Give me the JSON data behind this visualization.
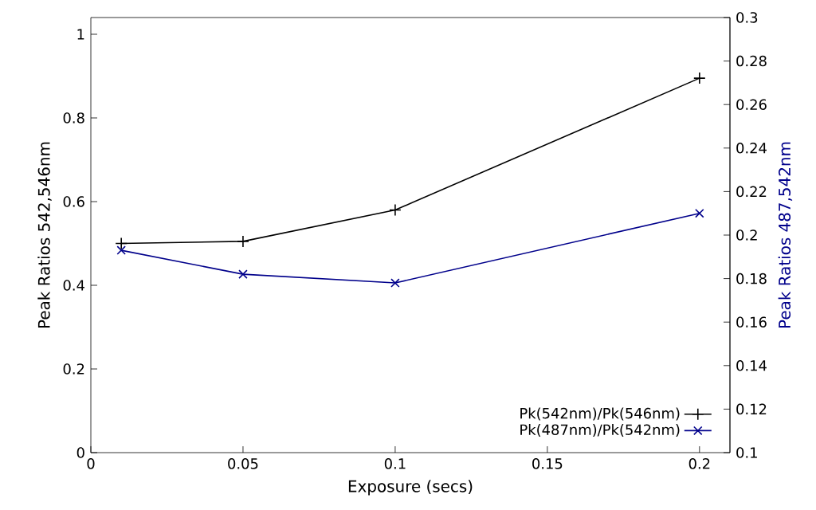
{
  "chart_data": {
    "type": "line",
    "xlabel": "Exposure (secs)",
    "ylabel": "Peak Ratios 542,546nm",
    "y2label": "Peak Ratios 487,542nm",
    "x": [
      0.01,
      0.05,
      0.1,
      0.2
    ],
    "series": [
      {
        "name": "Pk(542nm)/Pk(546nm)",
        "color": "#000000",
        "marker": "plus",
        "values": [
          0.5,
          0.505,
          0.58,
          0.895
        ]
      },
      {
        "name": "Pk(487nm)/Pk(542nm)",
        "color": "#00008b",
        "marker": "cross",
        "axis": "y2",
        "values": [
          0.193,
          0.182,
          0.178,
          0.21
        ]
      }
    ],
    "xlim": [
      0,
      0.21
    ],
    "xticks": [
      0,
      0.05,
      0.1,
      0.15,
      0.2
    ],
    "ylim": [
      0,
      1.04
    ],
    "yticks": [
      0,
      0.2,
      0.4,
      0.6,
      0.8,
      1
    ],
    "y2lim": [
      0.1,
      0.3
    ],
    "y2ticks": [
      0.1,
      0.12,
      0.14,
      0.16,
      0.18,
      0.2,
      0.22,
      0.24,
      0.26,
      0.28,
      0.3
    ],
    "legend": "bottom right",
    "grid": false,
    "line_style": "solid"
  }
}
